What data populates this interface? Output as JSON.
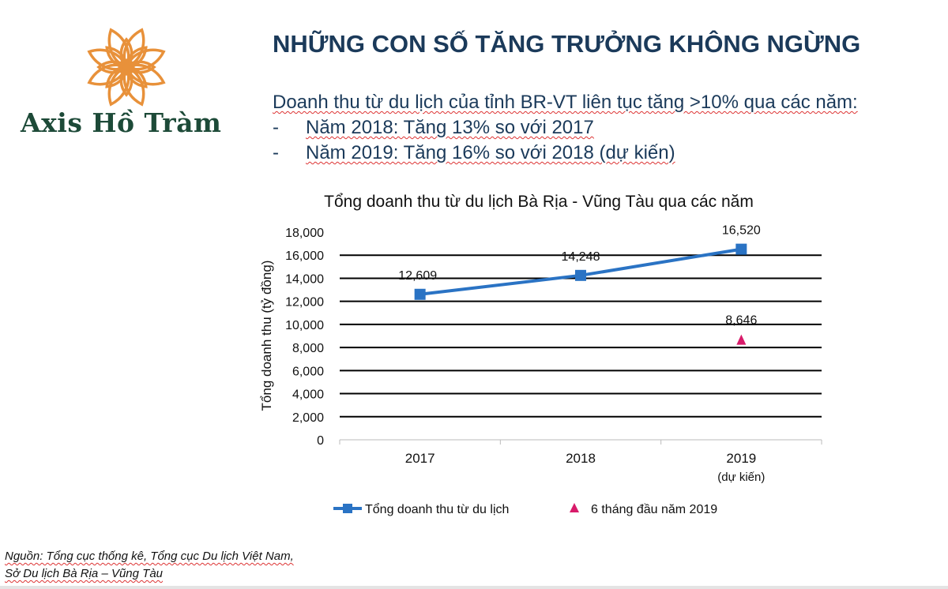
{
  "logo": {
    "text": "Axis Hồ Tràm",
    "color": "#e8913a",
    "text_color": "#1d4a38"
  },
  "header": {
    "title": "NHỮNG CON SỐ TĂNG TRƯỞNG KHÔNG NGỪNG"
  },
  "summary": {
    "intro": "Doanh thu từ du lịch của tỉnh BR-VT liên tục tăng >10% qua các năm:",
    "bullets": [
      {
        "dash": "-",
        "text": "Năm 2018: Tăng 13% so với 2017"
      },
      {
        "dash": "-",
        "text": "Năm 2019:  Tăng 16% so với 2018 (dự kiến)"
      }
    ]
  },
  "chart_data": {
    "type": "line",
    "title": "Tổng doanh thu từ du lịch Bà Rịa - Vũng Tàu qua các năm",
    "xlabel": "",
    "ylabel": "Tổng doanh thu (tỷ đồng)",
    "ylim": [
      0,
      18000
    ],
    "yticks": [
      "0",
      "2,000",
      "4,000",
      "6,000",
      "8,000",
      "10,000",
      "12,000",
      "14,000",
      "16,000",
      "18,000"
    ],
    "categories": [
      "2017",
      "2018",
      "2019"
    ],
    "category_sublabels": [
      "",
      "",
      "(dự kiến)"
    ],
    "grid": true,
    "legend_position": "bottom",
    "series": [
      {
        "name": "Tổng doanh thu từ du lịch",
        "marker": "square",
        "color": "#2a73c4",
        "line": true,
        "values": [
          12609,
          14248,
          16520
        ],
        "labels": [
          "12,609",
          "14,248",
          "16,520"
        ]
      },
      {
        "name": "6 tháng đầu năm 2019",
        "marker": "triangle",
        "color": "#d81b6a",
        "line": false,
        "values": [
          null,
          null,
          8646
        ],
        "labels": [
          "",
          "",
          "8,646"
        ]
      }
    ]
  },
  "footnote": {
    "line1": "Nguồn: Tổng cục thống kê, Tổng cục Du lịch Việt Nam,",
    "line2": "Sở Du lịch Bà Rịa – Vũng Tàu"
  }
}
